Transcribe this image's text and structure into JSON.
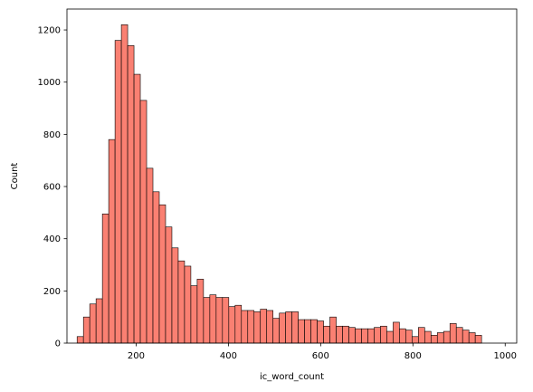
{
  "chart_data": {
    "type": "bar",
    "subtype": "histogram",
    "title": "",
    "xlabel": "ic_word_count",
    "ylabel": "Count",
    "xlim": [
      50,
      1025
    ],
    "ylim": [
      0,
      1280
    ],
    "xticks": [
      200,
      400,
      600,
      800,
      1000
    ],
    "yticks": [
      0,
      200,
      400,
      600,
      800,
      1000,
      1200
    ],
    "bin_start": 72,
    "bin_width": 13.7,
    "counts": [
      25,
      100,
      150,
      170,
      495,
      780,
      1160,
      1220,
      1140,
      1030,
      930,
      670,
      580,
      530,
      445,
      365,
      315,
      295,
      220,
      245,
      175,
      185,
      175,
      175,
      140,
      145,
      125,
      125,
      120,
      130,
      125,
      95,
      115,
      120,
      120,
      90,
      90,
      90,
      85,
      65,
      100,
      65,
      65,
      60,
      55,
      55,
      55,
      60,
      65,
      45,
      80,
      55,
      50,
      25,
      60,
      45,
      30,
      40,
      45,
      75,
      60,
      50,
      40,
      30
    ],
    "bar_color": "#fa8072",
    "edge_color": "#000000",
    "grid": false
  }
}
